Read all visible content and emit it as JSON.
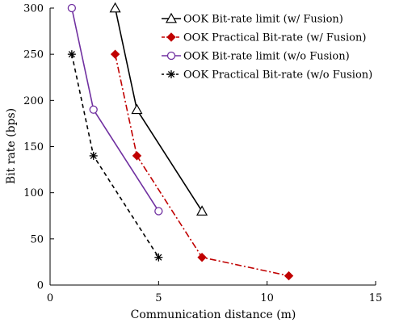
{
  "chart_data": {
    "type": "line",
    "xlabel": "Communication distance (m)",
    "ylabel": "Bit rate (bps)",
    "xlim": [
      0,
      15
    ],
    "ylim": [
      0,
      300
    ],
    "xticks": [
      0,
      5,
      10,
      15
    ],
    "yticks": [
      0,
      50,
      100,
      150,
      200,
      250,
      300
    ],
    "grid": false,
    "legend_position": "top-right",
    "series": [
      {
        "name": "OOK Bit-rate limit (w/ Fusion)",
        "color": "#000000",
        "line_style": "solid",
        "marker": "triangle-open",
        "points": [
          [
            3,
            300
          ],
          [
            4,
            190
          ],
          [
            7,
            80
          ]
        ]
      },
      {
        "name": "OOK Practical Bit-rate (w/ Fusion)",
        "color": "#c00000",
        "line_style": "dash-dot",
        "marker": "diamond-filled",
        "points": [
          [
            3,
            250
          ],
          [
            4,
            140
          ],
          [
            7,
            30
          ],
          [
            11,
            10
          ]
        ]
      },
      {
        "name": "OOK Bit-rate limit (w/o Fusion)",
        "color": "#7030a0",
        "line_style": "solid",
        "marker": "circle-open",
        "points": [
          [
            1,
            300
          ],
          [
            2,
            190
          ],
          [
            5,
            80
          ]
        ]
      },
      {
        "name": "OOK Practical Bit-rate (w/o Fusion)",
        "color": "#000000",
        "line_style": "dashed",
        "marker": "asterisk",
        "points": [
          [
            1,
            250
          ],
          [
            2,
            140
          ],
          [
            5,
            30
          ]
        ]
      }
    ]
  }
}
